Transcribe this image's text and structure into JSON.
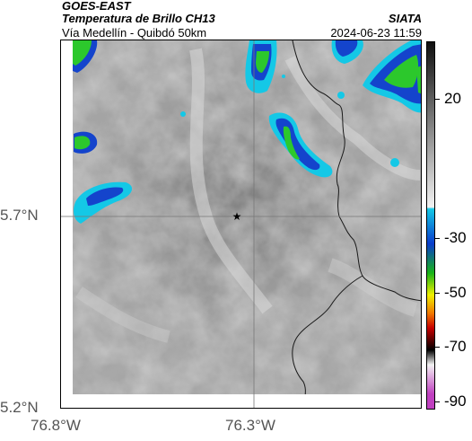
{
  "header": {
    "satellite": "GOES-EAST",
    "product": "Temperatura de Brillo CH13",
    "route": "Vía Medellín - Quibdó 50km",
    "source": "SIATA",
    "datetime": "2024-06-23 11:59"
  },
  "axes": {
    "lat_labels": [
      "5.7°N",
      "5.2°N"
    ],
    "lon_labels": [
      "76.8°W",
      "76.3°W"
    ]
  },
  "colorbar": {
    "labels": [
      "20",
      "-30",
      "-50",
      "-70",
      "-90"
    ],
    "colors": {
      "gray_top": "#101010",
      "gray_bottom": "#f2f2f2",
      "cyan": "#14c8e6",
      "blue": "#0a3ccc",
      "green": "#18b418",
      "yellow": "#f0f000",
      "orange": "#f07800",
      "red": "#c80000",
      "black": "#000000",
      "magenta": "#c040c0"
    }
  },
  "map": {
    "marker": "star-icon",
    "background_color": "#a8a8a8",
    "cloud_colors": {
      "cold_cyan": "#14c8e6",
      "cold_blue": "#1444cc",
      "very_cold_green": "#2cc82c"
    }
  }
}
